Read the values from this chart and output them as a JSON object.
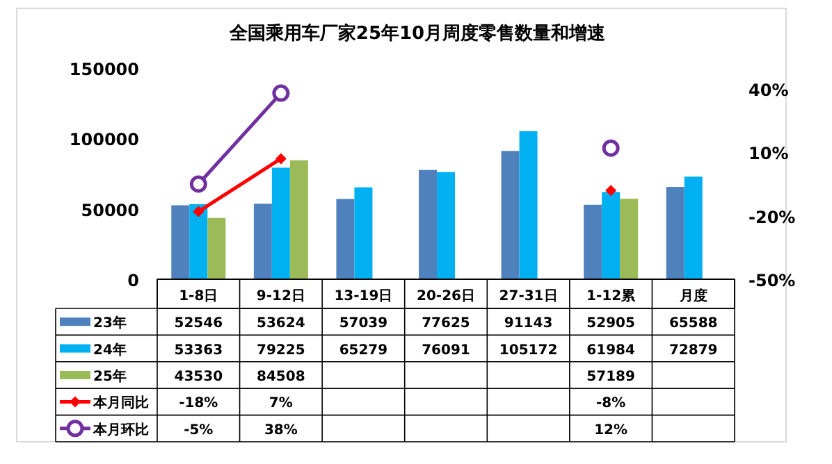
{
  "chart_data": {
    "type": "bar",
    "title": "全国乘用车厂家25年10月周度零售数量和增速",
    "categories": [
      "1-8日",
      "9-12日",
      "13-19日",
      "20-26日",
      "27-31日",
      "1-12累",
      "月度"
    ],
    "series": [
      {
        "name": "23年",
        "color": "#4f81bd",
        "values": [
          52546,
          53624,
          57039,
          77625,
          91143,
          52905,
          65588
        ],
        "value_labels": [
          "52546",
          "53624",
          "57039",
          "77625",
          "91143",
          "52905",
          "65588"
        ]
      },
      {
        "name": "24年",
        "color": "#00b0f0",
        "values": [
          53363,
          79225,
          65279,
          76091,
          105172,
          61984,
          72879
        ],
        "value_labels": [
          "53363",
          "79225",
          "65279",
          "76091",
          "105172",
          "61984",
          "72879"
        ]
      },
      {
        "name": "25年",
        "color": "#9bbb59",
        "values": [
          43530,
          84508,
          null,
          null,
          null,
          57189,
          null
        ],
        "value_labels": [
          "43530",
          "84508",
          null,
          null,
          null,
          "57189",
          null
        ]
      },
      {
        "name": "本月同比",
        "type": "line",
        "axis": "y2",
        "marker": "diamond",
        "color": "#ff0000",
        "values": [
          -18,
          7,
          null,
          null,
          null,
          -8,
          null
        ],
        "value_labels": [
          "-18%",
          "7%",
          null,
          null,
          null,
          "-8%",
          null
        ]
      },
      {
        "name": "本月环比",
        "type": "line",
        "axis": "y2",
        "marker": "circle",
        "color": "#7030a0",
        "values": [
          -5,
          38,
          null,
          null,
          null,
          12,
          null
        ],
        "value_labels": [
          "-5%",
          "38%",
          null,
          null,
          null,
          "12%",
          null
        ]
      }
    ],
    "ylim": [
      0,
      150000
    ],
    "yticks": [
      0,
      50000,
      100000,
      150000
    ],
    "y2lim": [
      -50,
      40
    ],
    "y2ticks": [
      {
        "value": -50,
        "label": "-50%"
      },
      {
        "value": -20,
        "label": "-20%"
      },
      {
        "value": 10,
        "label": "10%"
      },
      {
        "value": 40,
        "label": "40%"
      }
    ],
    "grid": false,
    "legend": "bottom"
  }
}
